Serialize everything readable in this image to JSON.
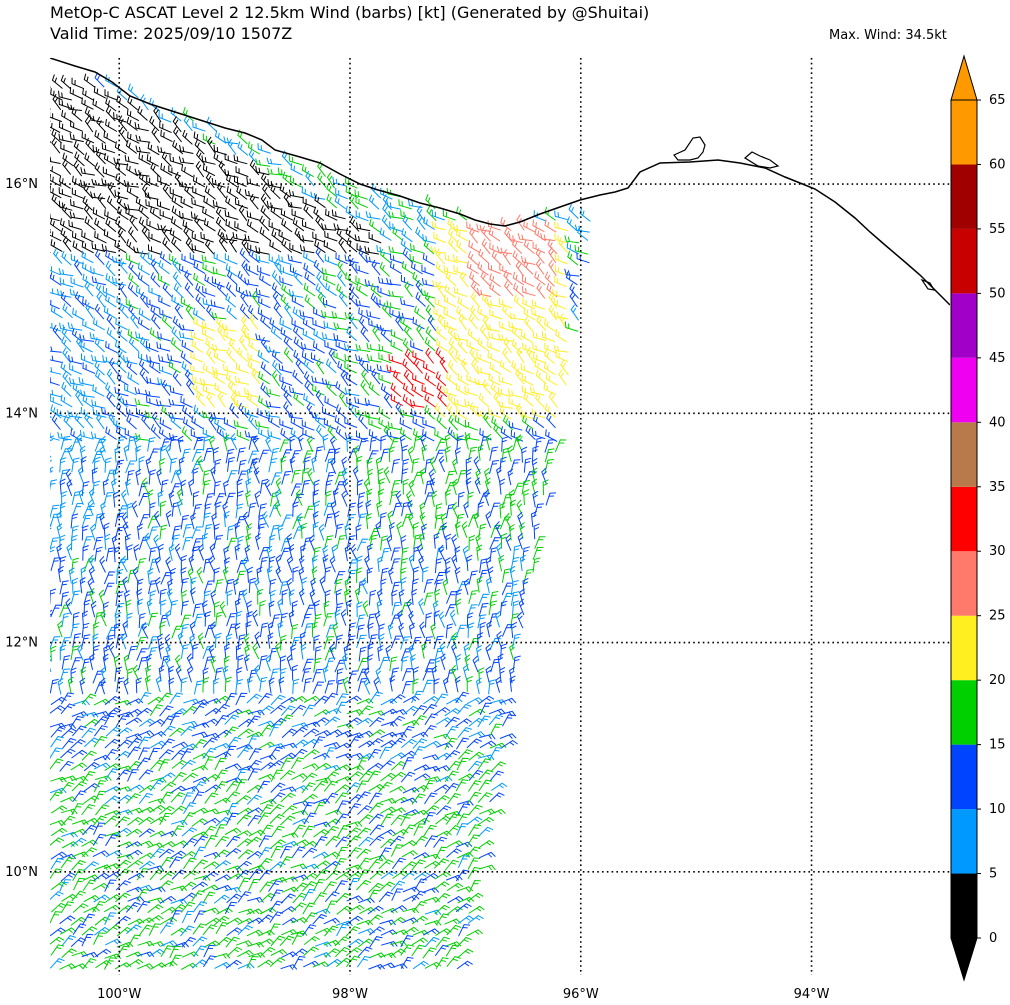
{
  "header": {
    "title_line1": "MetOp-C ASCAT Level 2 12.5km Wind (barbs) [kt] (Generated by @Shuitai)",
    "title_line2": "Valid Time: 2025/09/10 1507Z",
    "max_wind": "Max. Wind: 34.5kt"
  },
  "map": {
    "lon_range": [
      -100.6,
      -92.8
    ],
    "lat_range": [
      9.1,
      17.1
    ],
    "lat_labels": [
      "16°N",
      "14°N",
      "12°N",
      "10°N"
    ],
    "lon_labels": [
      "100°W",
      "98°W",
      "96°W",
      "94°W"
    ],
    "gridlines": "dotted",
    "coastline_color": "#000000"
  },
  "colorbar": {
    "unit": "kt",
    "extend": "both",
    "levels": [
      "0",
      "5",
      "10",
      "15",
      "20",
      "25",
      "30",
      "35",
      "40",
      "45",
      "50",
      "55",
      "60",
      "65"
    ],
    "colors": [
      "#000000",
      "#0099ff",
      "#0044ff",
      "#00d000",
      "#ffee20",
      "#ff7a6a",
      "#ff0000",
      "#b87a4a",
      "#f000f0",
      "#a000c8",
      "#c80000",
      "#a00000",
      "#ff9900"
    ]
  },
  "chart_data": {
    "type": "barbs",
    "variable": "ASCAT 12.5km wind speed",
    "units": "kt",
    "max_wind_kt": 34.5,
    "swath_lon_range": [
      -100.6,
      -96.0
    ],
    "dominant_speed_bins_kt": [
      "5-10",
      "10-15",
      "15-20",
      "20-25"
    ],
    "strongest_region_kt": "30-35"
  }
}
